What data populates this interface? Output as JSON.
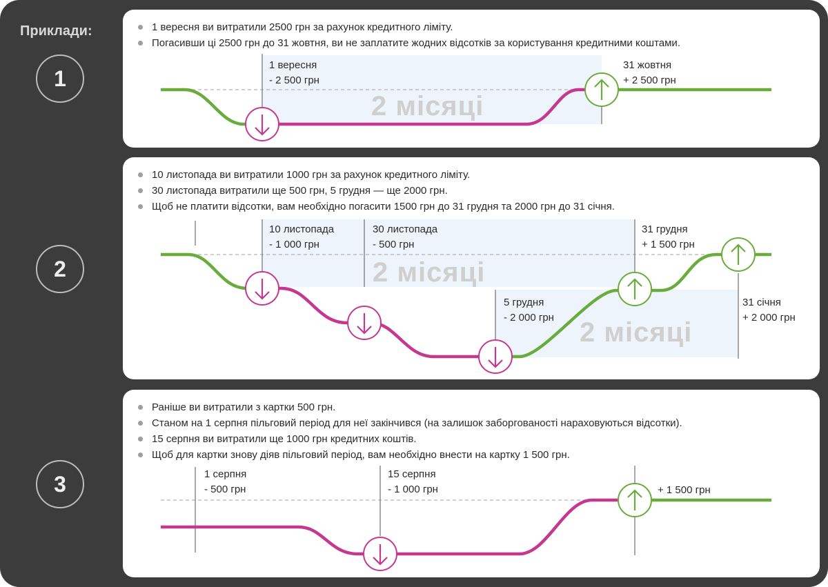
{
  "side_title": "Приклади:",
  "colors": {
    "green": "#6aab3e",
    "magenta": "#c4398f",
    "shade": "#eef4fb",
    "frame": "#3c3c3c"
  },
  "examples": [
    {
      "number": "1",
      "bullets": [
        "1 вересня ви витратили 2500 грн за рахунок кредитного ліміту.",
        "Погасивши ці 2500 грн до 31 жовтня, ви не заплатите жодних відсотків за користування кредитними коштами."
      ],
      "labels": {
        "a_line1": "1 вересня",
        "a_line2": "- 2 500 грн",
        "b_line1": "31 жовтня",
        "b_line2": "+ 2 500 грн",
        "period": "2 місяці"
      }
    },
    {
      "number": "2",
      "bullets": [
        "10 листопада ви витратили 1000 грн за рахунок кредитного ліміту.",
        "30 листопада витратили ще 500 грн, 5 грудня — ще 2000 грн.",
        "Щоб не платити відсотки, вам необхідно погасити 1500 грн до 31 грудня та 2000 грн до 31 січня."
      ],
      "labels": {
        "a_line1": "10 листопада",
        "a_line2": "- 1 000 грн",
        "b_line1": "30 листопада",
        "b_line2": "- 500 грн",
        "c_line1": "5 грудня",
        "c_line2": "- 2 000 грн",
        "d_line1": "31 грудня",
        "d_line2": "+ 1 500 грн",
        "e_line1": "31 січня",
        "e_line2": "+ 2 000 грн",
        "period1": "2 місяці",
        "period2": "2 місяці"
      }
    },
    {
      "number": "3",
      "bullets": [
        "Раніше ви витратили з картки 500 грн.",
        "Станом на 1 серпня пільговий період для неї закінчився (на залишок заборгованості нараховуються відсотки).",
        "15 серпня ви витратили ще 1000 грн кредитних коштів.",
        "Щоб для картки знову діяв пільговий період, вам необхідно внести на картку 1 500 грн."
      ],
      "labels": {
        "a_line1": "1 серпня",
        "a_line2": "- 500 грн",
        "b_line1": "15 серпня",
        "b_line2": "- 1 000 грн",
        "c_line1": "+ 1 500 грн"
      }
    }
  ]
}
